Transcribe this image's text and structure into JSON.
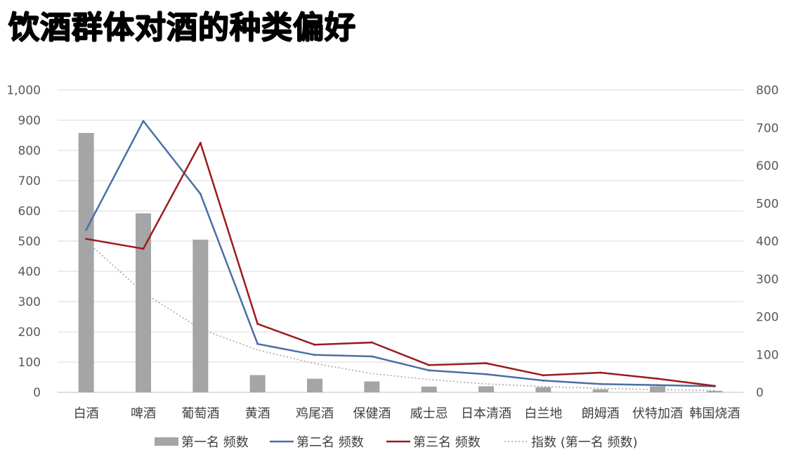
{
  "title": "饮酒群体对酒的种类偏好",
  "chart_data": {
    "type": "bar",
    "title": "饮酒群体对酒的种类偏好",
    "categories": [
      "白酒",
      "啤酒",
      "葡萄酒",
      "黄酒",
      "鸡尾酒",
      "保健酒",
      "威士忌",
      "日本清酒",
      "白兰地",
      "朗姆酒",
      "伏特加酒",
      "韩国烧酒"
    ],
    "y_left": {
      "range": [
        0,
        1000
      ],
      "ticks": [
        "0",
        "100",
        "200",
        "300",
        "400",
        "500",
        "600",
        "700",
        "800",
        "900",
        "1,000"
      ]
    },
    "y_right": {
      "range": [
        0,
        800
      ],
      "ticks": [
        "0",
        "100",
        "200",
        "300",
        "400",
        "500",
        "600",
        "700",
        "800"
      ]
    },
    "grid": true,
    "legend_position": "bottom",
    "series": [
      {
        "name": "第一名 频数",
        "type": "bar",
        "axis": "left",
        "color": "#a5a5a5",
        "values": [
          858,
          592,
          505,
          57,
          45,
          36,
          19,
          20,
          17,
          10,
          20,
          5
        ]
      },
      {
        "name": "第二名 频数",
        "type": "line",
        "axis": "right",
        "color": "#4a6fa5",
        "values": [
          430,
          718,
          525,
          128,
          99,
          95,
          58,
          48,
          31,
          22,
          19,
          16
        ]
      },
      {
        "name": "第三名 频数",
        "type": "line",
        "axis": "right",
        "color": "#9b1b1b",
        "values": [
          406,
          380,
          660,
          181,
          126,
          132,
          72,
          77,
          45,
          52,
          36,
          17
        ]
      },
      {
        "name": "指数 (第一名 频数)",
        "type": "trendline",
        "axis": "left",
        "color": "#a5a5a5",
        "values": [
          500,
          330,
          210,
          140,
          95,
          62,
          42,
          28,
          19,
          13,
          9,
          6
        ]
      }
    ]
  }
}
